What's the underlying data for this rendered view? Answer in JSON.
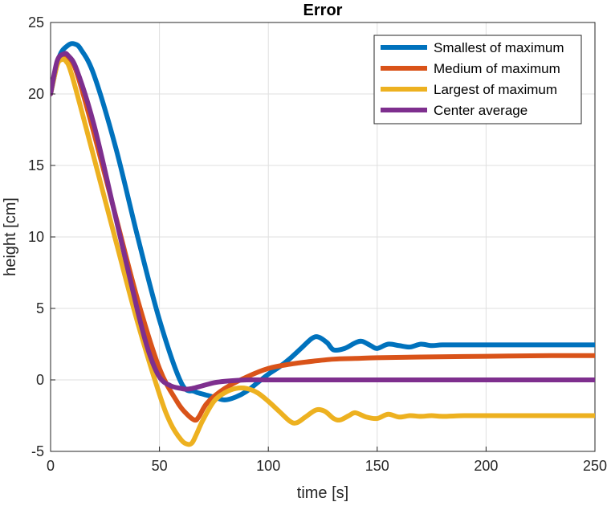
{
  "chart_data": {
    "type": "line",
    "title": "Error",
    "xlabel": "time [s]",
    "ylabel": "height [cm]",
    "xlim": [
      0,
      250
    ],
    "ylim": [
      -5,
      25
    ],
    "xticks": [
      0,
      50,
      100,
      150,
      200,
      250
    ],
    "yticks": [
      -5,
      0,
      5,
      10,
      15,
      20,
      25
    ],
    "grid": true,
    "legend_position": "top-right",
    "series": [
      {
        "name": "Smallest of maximum",
        "color": "#0072BD",
        "x": [
          0,
          4,
          8,
          11,
          14,
          20,
          30,
          40,
          50,
          60,
          66,
          70,
          75,
          80,
          85,
          90,
          95,
          100,
          105,
          110,
          115,
          120,
          123,
          127,
          130,
          135,
          140,
          143,
          147,
          150,
          155,
          160,
          165,
          170,
          175,
          180,
          190,
          200,
          210,
          220,
          230,
          240,
          250
        ],
        "y": [
          20,
          22.6,
          23.4,
          23.5,
          23.1,
          21.3,
          16.2,
          10.0,
          4.2,
          -0.2,
          -0.8,
          -1.0,
          -1.2,
          -1.4,
          -1.2,
          -0.8,
          -0.2,
          0.4,
          0.9,
          1.5,
          2.2,
          2.9,
          3.0,
          2.6,
          2.1,
          2.2,
          2.6,
          2.7,
          2.4,
          2.2,
          2.5,
          2.4,
          2.3,
          2.5,
          2.4,
          2.45,
          2.45,
          2.45,
          2.45,
          2.45,
          2.45,
          2.45,
          2.45
        ]
      },
      {
        "name": "Medium of maximum",
        "color": "#D95319",
        "x": [
          0,
          3,
          6,
          8,
          12,
          20,
          30,
          40,
          50,
          58,
          62,
          66,
          68,
          72,
          80,
          90,
          100,
          110,
          120,
          130,
          140,
          150,
          170,
          200,
          230,
          250
        ],
        "y": [
          20,
          22.2,
          22.7,
          22.6,
          21.5,
          17.2,
          11.4,
          5.6,
          0.8,
          -1.5,
          -2.3,
          -2.8,
          -2.6,
          -1.6,
          -0.6,
          0.2,
          0.8,
          1.1,
          1.3,
          1.45,
          1.5,
          1.55,
          1.6,
          1.65,
          1.7,
          1.7
        ]
      },
      {
        "name": "Largest of maximum",
        "color": "#EDB120",
        "x": [
          0,
          3,
          5,
          7,
          10,
          20,
          30,
          40,
          50,
          55,
          60,
          63,
          65,
          67,
          70,
          75,
          80,
          85,
          90,
          95,
          100,
          105,
          110,
          113,
          117,
          122,
          126,
          130,
          133,
          137,
          140,
          145,
          150,
          155,
          160,
          165,
          170,
          175,
          180,
          190,
          200,
          220,
          250
        ],
        "y": [
          20,
          22.0,
          22.4,
          22.3,
          21.2,
          15.5,
          9.7,
          4.0,
          -1.0,
          -3.0,
          -4.2,
          -4.5,
          -4.4,
          -3.8,
          -2.8,
          -1.5,
          -0.9,
          -0.6,
          -0.6,
          -0.9,
          -1.5,
          -2.2,
          -2.9,
          -3.0,
          -2.6,
          -2.1,
          -2.2,
          -2.7,
          -2.8,
          -2.5,
          -2.3,
          -2.6,
          -2.7,
          -2.4,
          -2.6,
          -2.5,
          -2.55,
          -2.5,
          -2.55,
          -2.5,
          -2.5,
          -2.5,
          -2.5
        ]
      },
      {
        "name": "Center average",
        "color": "#7E2F8E",
        "x": [
          0,
          3,
          6,
          8,
          12,
          20,
          30,
          40,
          45,
          50,
          55,
          60,
          62,
          65,
          70,
          75,
          80,
          90,
          100,
          120,
          150,
          200,
          250
        ],
        "y": [
          20,
          22.3,
          22.8,
          22.7,
          21.7,
          17.8,
          11.3,
          4.8,
          2.0,
          0.2,
          -0.4,
          -0.6,
          -0.65,
          -0.6,
          -0.4,
          -0.2,
          -0.1,
          0,
          0,
          0,
          0,
          0,
          0
        ]
      }
    ]
  }
}
